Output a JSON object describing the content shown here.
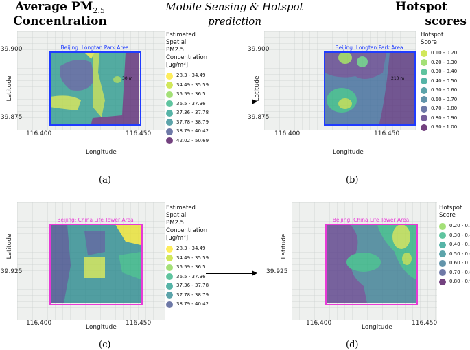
{
  "headers": {
    "left_line1": "Average PM",
    "left_sub": "2.5",
    "left_line2": "Concentration",
    "middle_line1": "Mobile Sensing & Hotspot",
    "middle_line2": "prediction",
    "right_line1": "Hotspot",
    "right_line2": "scores"
  },
  "panels": {
    "a": {
      "caption": "(a)",
      "area_title": "Beijing: Longtan Park Area",
      "lat_ticks": [
        "39.900",
        "39.875"
      ],
      "lon_ticks": [
        "116.400",
        "116.450"
      ],
      "xlabel": "Longitude",
      "ylabel": "Latitude",
      "scale": "30 m",
      "legend_title": [
        "Estimated",
        "Spatial",
        "PM2.5",
        "Concentration",
        "[µg/m³]"
      ],
      "legend": [
        {
          "label": "28.3 - 34.49",
          "color": "#fde725"
        },
        {
          "label": "34.49 - 35.59",
          "color": "#c2df23"
        },
        {
          "label": "35.59 - 36.5",
          "color": "#86d549"
        },
        {
          "label": "36.5 - 37.36",
          "color": "#2ab07f"
        },
        {
          "label": "37.36 - 37.78",
          "color": "#1e9b8a"
        },
        {
          "label": "37.78 - 38.79",
          "color": "#25858e"
        },
        {
          "label": "38.79 - 40.42",
          "color": "#3e4c8a"
        },
        {
          "label": "42.02 - 50.69",
          "color": "#440154"
        }
      ]
    },
    "b": {
      "caption": "(b)",
      "area_title": "Beijing: Longtan Park Area",
      "lat_ticks": [
        "39.900",
        "39.875"
      ],
      "lon_ticks": [
        "116.400",
        "116.450"
      ],
      "xlabel": "Longitude",
      "ylabel": "Latitude",
      "scale": "210 m",
      "legend_title": [
        "Hotspot",
        "Score"
      ],
      "legend": [
        {
          "label": "0.10 - 0.20",
          "color": "#c2df23"
        },
        {
          "label": "0.20 - 0.30",
          "color": "#86d549"
        },
        {
          "label": "0.30 - 0.40",
          "color": "#2ab07f"
        },
        {
          "label": "0.40 - 0.50",
          "color": "#1e9b8a"
        },
        {
          "label": "0.50 - 0.60",
          "color": "#25858e"
        },
        {
          "label": "0.60 - 0.70",
          "color": "#2d708e"
        },
        {
          "label": "0.70 - 0.80",
          "color": "#3e4c8a"
        },
        {
          "label": "0.80 - 0.90",
          "color": "#482878"
        },
        {
          "label": "0.90 - 1.00",
          "color": "#440154"
        }
      ]
    },
    "c": {
      "caption": "(c)",
      "area_title": "Beijing: China Life Tower Area",
      "lat_ticks": [
        "39.925"
      ],
      "lon_ticks": [
        "116.400",
        "116.450"
      ],
      "xlabel": "Longitude",
      "ylabel": "Latitude",
      "legend_title": [
        "Estimated",
        "Spatial",
        "PM2.5",
        "Concentration",
        "[µg/m³]"
      ],
      "legend": [
        {
          "label": "28.3 - 34.49",
          "color": "#fde725"
        },
        {
          "label": "34.49 - 35.59",
          "color": "#c2df23"
        },
        {
          "label": "35.59 - 36.5",
          "color": "#86d549"
        },
        {
          "label": "36.5 - 37.36",
          "color": "#2ab07f"
        },
        {
          "label": "37.36 - 37.78",
          "color": "#1e9b8a"
        },
        {
          "label": "37.78 - 38.79",
          "color": "#25858e"
        },
        {
          "label": "38.79 - 40.42",
          "color": "#3e4c8a"
        }
      ]
    },
    "d": {
      "caption": "(d)",
      "area_title": "Beijing: China Life Tower Area",
      "lat_ticks": [
        "39.925"
      ],
      "lon_ticks": [
        "116.400",
        "116.450"
      ],
      "xlabel": "Longitude",
      "ylabel": "Latitude",
      "legend_title": [
        "Hotspot",
        "Score"
      ],
      "legend": [
        {
          "label": "0.20 - 0.30",
          "color": "#86d549"
        },
        {
          "label": "0.30 - 0.40",
          "color": "#2ab07f"
        },
        {
          "label": "0.40 - 0.50",
          "color": "#1e9b8a"
        },
        {
          "label": "0.50 - 0.60",
          "color": "#25858e"
        },
        {
          "label": "0.60 - 0.70",
          "color": "#2d708e"
        },
        {
          "label": "0.70 - 0.80",
          "color": "#3e4c8a"
        },
        {
          "label": "0.80 - 0.90",
          "color": "#440154"
        }
      ]
    }
  },
  "colors": {
    "longtan_box": "#1f3cff",
    "chinalife_box": "#e83ad6"
  }
}
